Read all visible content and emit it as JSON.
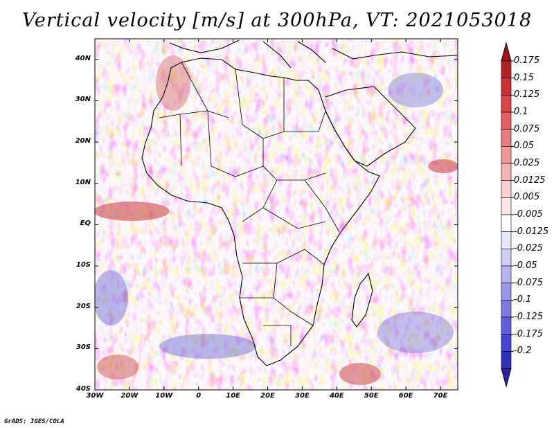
{
  "title": "Vertical velocity [m/s] at 300hPa, VT: 2021053018",
  "credit": "GrADS: IGES/COLA",
  "map": {
    "lon_range": [
      -30,
      75
    ],
    "lat_range": [
      -40,
      45
    ],
    "lat_ticks": [
      {
        "value": 40,
        "label": "40N"
      },
      {
        "value": 30,
        "label": "30N"
      },
      {
        "value": 20,
        "label": "20N"
      },
      {
        "value": 10,
        "label": "10N"
      },
      {
        "value": 0,
        "label": "EQ"
      },
      {
        "value": -10,
        "label": "10S"
      },
      {
        "value": -20,
        "label": "20S"
      },
      {
        "value": -30,
        "label": "30S"
      },
      {
        "value": -40,
        "label": "40S"
      }
    ],
    "lon_ticks": [
      {
        "value": -30,
        "label": "30W"
      },
      {
        "value": -20,
        "label": "20W"
      },
      {
        "value": -10,
        "label": "10W"
      },
      {
        "value": 0,
        "label": "0"
      },
      {
        "value": 10,
        "label": "10E"
      },
      {
        "value": 20,
        "label": "20E"
      },
      {
        "value": 30,
        "label": "30E"
      },
      {
        "value": 40,
        "label": "40E"
      },
      {
        "value": 50,
        "label": "50E"
      },
      {
        "value": 60,
        "label": "60E"
      },
      {
        "value": 70,
        "label": "70E"
      }
    ]
  },
  "colorbar": {
    "levels": [
      {
        "label": "0.175",
        "color": "#b22222"
      },
      {
        "label": "0.15",
        "color": "#c93030"
      },
      {
        "label": "0.125",
        "color": "#d94545"
      },
      {
        "label": "0.1",
        "color": "#e26060"
      },
      {
        "label": "0.075",
        "color": "#ea7c7c"
      },
      {
        "label": "0.05",
        "color": "#f09898"
      },
      {
        "label": "0.025",
        "color": "#f5b4b4"
      },
      {
        "label": "0.0125",
        "color": "#f9cfcf"
      },
      {
        "label": "0.005",
        "color": "#fce6e6"
      },
      {
        "label": "-0.005",
        "color": "#ffffff"
      },
      {
        "label": "-0.0125",
        "color": "#e6e6fb"
      },
      {
        "label": "-0.025",
        "color": "#cfcff7"
      },
      {
        "label": "-0.05",
        "color": "#b4b4f2"
      },
      {
        "label": "-0.075",
        "color": "#9898ec"
      },
      {
        "label": "-0.1",
        "color": "#7c7ce5"
      },
      {
        "label": "-0.125",
        "color": "#6060dc"
      },
      {
        "label": "-0.175",
        "color": "#4545cf"
      },
      {
        "label": "-0.2",
        "color": "#3030bf"
      }
    ],
    "top_arrow_color": "#a31515",
    "bottom_arrow_color": "#2a20a8"
  }
}
